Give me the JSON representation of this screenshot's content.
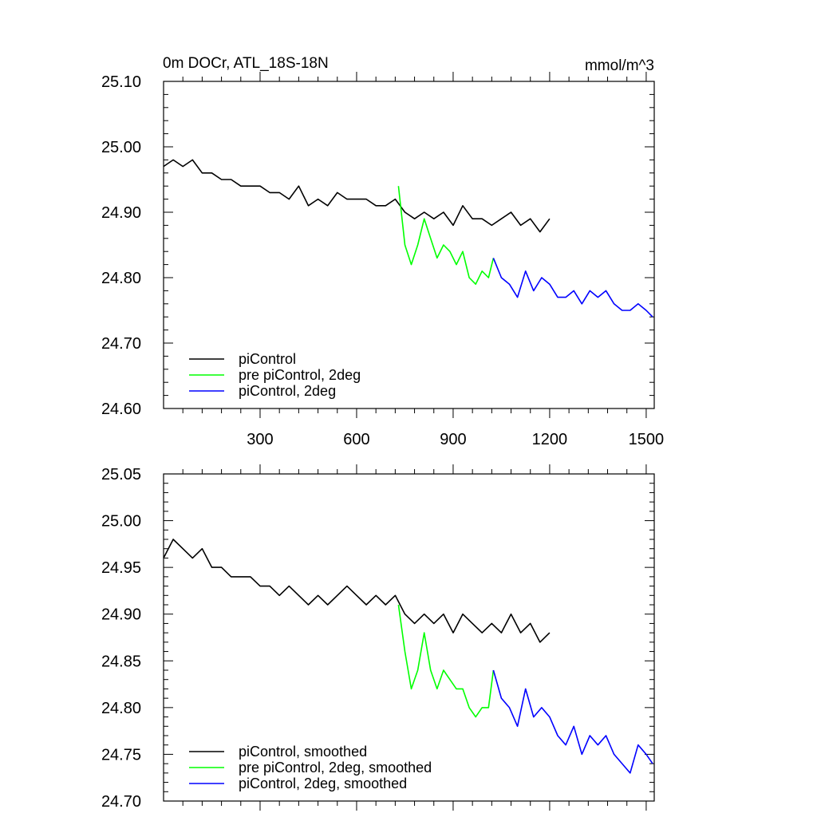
{
  "chart_data": [
    {
      "type": "line",
      "title": "0m DOCr, ATL_18S-18N",
      "units": "mmol/m^3",
      "xlabel": "",
      "ylabel": "",
      "xlim": [
        0,
        1525
      ],
      "ylim": [
        24.6,
        25.1
      ],
      "x_ticks": [
        300,
        600,
        900,
        1200,
        1500
      ],
      "x_tick_labels": [
        "300",
        "600",
        "900",
        "1200",
        "1500"
      ],
      "y_ticks": [
        24.6,
        24.7,
        24.8,
        24.9,
        25.0,
        25.1
      ],
      "y_tick_labels": [
        "24.60",
        "24.70",
        "24.80",
        "24.90",
        "25.00",
        "25.10"
      ],
      "legend_position": "bottom-left",
      "series": [
        {
          "name": "piControl",
          "color": "#000000",
          "x": [
            0,
            30,
            60,
            90,
            120,
            150,
            180,
            210,
            240,
            270,
            300,
            330,
            360,
            390,
            420,
            450,
            480,
            510,
            540,
            570,
            600,
            630,
            660,
            690,
            720,
            750,
            780,
            810,
            840,
            870,
            900,
            930,
            960,
            990,
            1020,
            1050,
            1080,
            1110,
            1140,
            1170,
            1200
          ],
          "values": [
            24.97,
            24.98,
            24.97,
            24.98,
            24.96,
            24.96,
            24.95,
            24.95,
            24.94,
            24.94,
            24.94,
            24.93,
            24.93,
            24.92,
            24.94,
            24.91,
            24.92,
            24.91,
            24.93,
            24.92,
            24.92,
            24.92,
            24.91,
            24.91,
            24.92,
            24.9,
            24.89,
            24.9,
            24.89,
            24.9,
            24.88,
            24.91,
            24.89,
            24.89,
            24.88,
            24.89,
            24.9,
            24.88,
            24.89,
            24.87,
            24.89
          ]
        },
        {
          "name": "pre piControl, 2deg",
          "color": "#00ff00",
          "x": [
            730,
            750,
            770,
            790,
            810,
            830,
            850,
            870,
            890,
            910,
            930,
            950,
            970,
            990,
            1010,
            1025
          ],
          "values": [
            24.94,
            24.85,
            24.82,
            24.85,
            24.89,
            24.86,
            24.83,
            24.85,
            24.84,
            24.82,
            24.84,
            24.8,
            24.79,
            24.81,
            24.8,
            24.83
          ]
        },
        {
          "name": "piControl, 2deg",
          "color": "#0000ff",
          "x": [
            1025,
            1050,
            1075,
            1100,
            1125,
            1150,
            1175,
            1200,
            1225,
            1250,
            1275,
            1300,
            1325,
            1350,
            1375,
            1400,
            1425,
            1450,
            1475,
            1500,
            1520
          ],
          "values": [
            24.83,
            24.8,
            24.79,
            24.77,
            24.81,
            24.78,
            24.8,
            24.79,
            24.77,
            24.77,
            24.78,
            24.76,
            24.78,
            24.77,
            24.78,
            24.76,
            24.75,
            24.75,
            24.76,
            24.75,
            24.74
          ]
        }
      ]
    },
    {
      "type": "line",
      "title": "",
      "xlabel": "",
      "ylabel": "",
      "xlim": [
        0,
        1525
      ],
      "ylim": [
        24.7,
        25.05
      ],
      "x_ticks": [
        300,
        600,
        900,
        1200,
        1500
      ],
      "y_ticks": [
        24.7,
        24.75,
        24.8,
        24.85,
        24.9,
        24.95,
        25.0,
        25.05
      ],
      "y_tick_labels": [
        "24.70",
        "24.75",
        "24.80",
        "24.85",
        "24.90",
        "24.95",
        "25.00",
        "25.05"
      ],
      "legend_position": "bottom-left",
      "series": [
        {
          "name": "piControl, smoothed",
          "color": "#000000",
          "x": [
            0,
            30,
            60,
            90,
            120,
            150,
            180,
            210,
            240,
            270,
            300,
            330,
            360,
            390,
            420,
            450,
            480,
            510,
            540,
            570,
            600,
            630,
            660,
            690,
            720,
            750,
            780,
            810,
            840,
            870,
            900,
            930,
            960,
            990,
            1020,
            1050,
            1080,
            1110,
            1140,
            1170,
            1200
          ],
          "values": [
            24.96,
            24.98,
            24.97,
            24.96,
            24.97,
            24.95,
            24.95,
            24.94,
            24.94,
            24.94,
            24.93,
            24.93,
            24.92,
            24.93,
            24.92,
            24.91,
            24.92,
            24.91,
            24.92,
            24.93,
            24.92,
            24.91,
            24.92,
            24.91,
            24.92,
            24.9,
            24.89,
            24.9,
            24.89,
            24.9,
            24.88,
            24.9,
            24.89,
            24.88,
            24.89,
            24.88,
            24.9,
            24.88,
            24.89,
            24.87,
            24.88
          ]
        },
        {
          "name": "pre piControl, 2deg, smoothed",
          "color": "#00ff00",
          "x": [
            730,
            750,
            770,
            790,
            810,
            830,
            850,
            870,
            890,
            910,
            930,
            950,
            970,
            990,
            1010,
            1025
          ],
          "values": [
            24.91,
            24.86,
            24.82,
            24.84,
            24.88,
            24.84,
            24.82,
            24.84,
            24.83,
            24.82,
            24.82,
            24.8,
            24.79,
            24.8,
            24.8,
            24.84
          ]
        },
        {
          "name": "piControl, 2deg, smoothed",
          "color": "#0000ff",
          "x": [
            1025,
            1050,
            1075,
            1100,
            1125,
            1150,
            1175,
            1200,
            1225,
            1250,
            1275,
            1300,
            1325,
            1350,
            1375,
            1400,
            1425,
            1450,
            1475,
            1500,
            1520
          ],
          "values": [
            24.84,
            24.81,
            24.8,
            24.78,
            24.82,
            24.79,
            24.8,
            24.79,
            24.77,
            24.76,
            24.78,
            24.75,
            24.77,
            24.76,
            24.77,
            24.75,
            24.74,
            24.73,
            24.76,
            24.75,
            24.74
          ]
        }
      ]
    }
  ]
}
